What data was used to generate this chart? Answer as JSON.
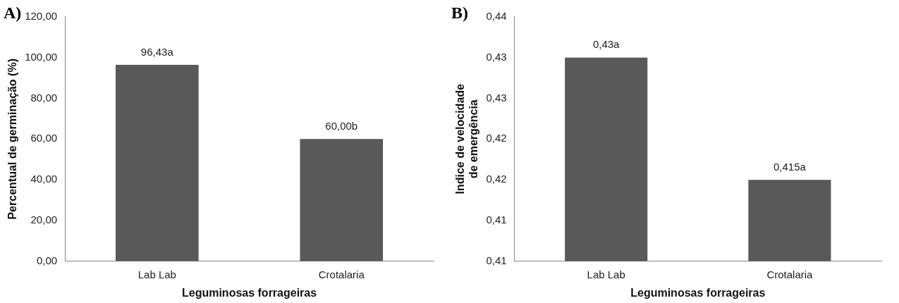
{
  "chart_data": [
    {
      "type": "bar",
      "title": "A)",
      "xlabel": "Leguminosas forrageiras",
      "ylabel": "Percentual de germinação (%)",
      "categories": [
        "Lab Lab",
        "Crotalaria"
      ],
      "values": [
        96.43,
        60.0
      ],
      "value_labels": [
        "96,43a",
        "60,00b"
      ],
      "color": "#595959",
      "ylim": [
        0,
        120
      ],
      "yticks": [
        {
          "value": 0,
          "label": "0,00"
        },
        {
          "value": 20,
          "label": "20,00"
        },
        {
          "value": 40,
          "label": "40,00"
        },
        {
          "value": 60,
          "label": "60,00"
        },
        {
          "value": 80,
          "label": "80,00"
        },
        {
          "value": 100,
          "label": "100,00"
        },
        {
          "value": 120,
          "label": "120,00"
        }
      ],
      "grid": false,
      "legend": false
    },
    {
      "type": "bar",
      "title": "B)",
      "xlabel": "Leguminosas forrageiras",
      "ylabel": "Indice de velocidade de emergência",
      "categories": [
        "Lab Lab",
        "Crotalaria"
      ],
      "values": [
        0.43,
        0.415
      ],
      "value_labels": [
        "0,43a",
        "0,415a"
      ],
      "color": "#595959",
      "ylim": [
        0.405,
        0.435
      ],
      "yticks": [
        {
          "value": 0.405,
          "label": "0,41"
        },
        {
          "value": 0.41,
          "label": "0,41"
        },
        {
          "value": 0.415,
          "label": "0,42"
        },
        {
          "value": 0.42,
          "label": "0,42"
        },
        {
          "value": 0.425,
          "label": "0,43"
        },
        {
          "value": 0.43,
          "label": "0,43"
        },
        {
          "value": 0.435,
          "label": "0,44"
        }
      ],
      "grid": false,
      "legend": false
    }
  ]
}
